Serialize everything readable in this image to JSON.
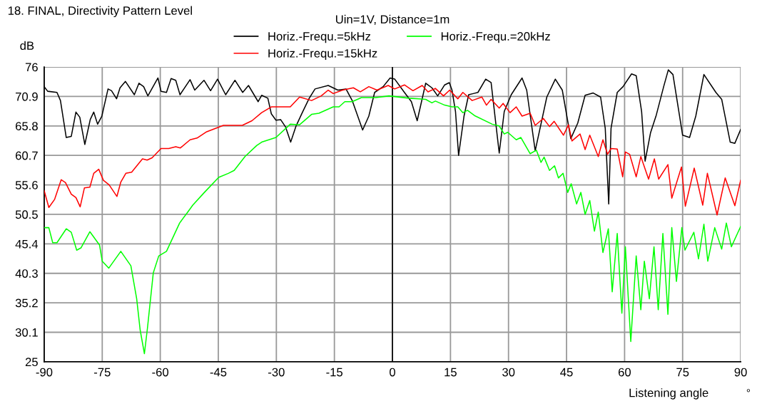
{
  "chart_data": {
    "type": "line",
    "title": "18. FINAL, Directivity Pattern Level",
    "xlabel": "Listening angle",
    "ylabel": "dB",
    "legend_title": "Uin=1V, Distance=1m",
    "annotations": [
      "°"
    ],
    "xlim": [
      -90,
      90
    ],
    "xticks": [
      -90,
      -75,
      -60,
      -45,
      -30,
      -15,
      0,
      15,
      30,
      45,
      60,
      75,
      90
    ],
    "ylim": [
      25,
      76
    ],
    "yticks": [
      25,
      30.1,
      35.2,
      40.3,
      45.4,
      50.5,
      55.6,
      60.7,
      65.8,
      70.9,
      76
    ],
    "grid": true,
    "legend": "top",
    "marker": "none",
    "line_style": "solid",
    "ref_lines": [
      {
        "axis": "x",
        "value": 0,
        "color": "#000000"
      }
    ],
    "series": [
      {
        "name": "Horiz.-Frequ.=5kHz",
        "color": "#000000",
        "x": [
          -90,
          -89.1,
          -86.7,
          -85.8,
          -84.3,
          -83,
          -81.8,
          -80.8,
          -79.5,
          -78.1,
          -77.2,
          -76.2,
          -75.1,
          -73.5,
          -72.6,
          -71.3,
          -70.4,
          -69,
          -66.7,
          -65.5,
          -64.3,
          -63.2,
          -60.6,
          -59.8,
          -58.4,
          -57.2,
          -56,
          -54.9,
          -52.3,
          -51.1,
          -48.7,
          -47,
          -45.2,
          -43.1,
          -40.7,
          -38.7,
          -37.2,
          -34.7,
          -33.8,
          -32.2,
          -31.3,
          -30.1,
          -28.9,
          -27.6,
          -26.3,
          -24.9,
          -23.3,
          -21.5,
          -20,
          -16.6,
          -14.1,
          -12,
          -10.4,
          -7.7,
          -6.1,
          -4.6,
          -2.4,
          -0.6,
          0.6,
          3.1,
          4.9,
          6.4,
          8.6,
          10.2,
          11.7,
          13.5,
          14.7,
          15.4,
          16.3,
          17.1,
          18.5,
          19.7,
          20.9,
          22.1,
          24.1,
          25.5,
          27.6,
          28.9,
          30.7,
          33.5,
          34.7,
          36.9,
          39.9,
          42.1,
          43.9,
          46.1,
          47.9,
          49.8,
          51.9,
          53.8,
          55,
          55.9,
          56.5,
          58.1,
          59.6,
          61.8,
          63,
          64.4,
          65.3,
          66.7,
          68.2,
          70.1,
          71.3,
          72.5,
          75,
          76.8,
          78.4,
          80.5,
          83.6,
          85.1,
          87.3,
          88.5,
          90
        ],
        "values": [
          72.6,
          71.8,
          71.6,
          70.2,
          63.8,
          64,
          68.2,
          67.3,
          62.6,
          66.9,
          68.2,
          66.1,
          67.5,
          72.2,
          71.9,
          70.5,
          72.4,
          73.5,
          71.2,
          73.2,
          72.6,
          71,
          74.1,
          71.8,
          71.6,
          74,
          73.7,
          71.2,
          73.8,
          72,
          73.7,
          71.9,
          73.9,
          71.2,
          73.7,
          71.6,
          72.8,
          70,
          71.1,
          70.6,
          67.9,
          66.8,
          66.9,
          65.6,
          63,
          65.8,
          68.1,
          70.6,
          72.2,
          72.8,
          72,
          72.2,
          70.2,
          65.1,
          67.5,
          71.6,
          72.6,
          74.1,
          73.9,
          71.6,
          70,
          66.7,
          73.2,
          72.4,
          71,
          72.9,
          73.3,
          72,
          68.3,
          60.7,
          67.5,
          71.2,
          71.4,
          71.6,
          73.9,
          73.3,
          61.1,
          68.3,
          71.2,
          74.1,
          72,
          61.5,
          70.8,
          73.9,
          72,
          63.6,
          66.3,
          71.1,
          71.5,
          70.8,
          65.4,
          52.3,
          65.4,
          71.6,
          72.6,
          74.8,
          74.5,
          68.3,
          59.7,
          64.6,
          67.7,
          72.6,
          75.5,
          74.7,
          64.2,
          63.8,
          67.5,
          74.7,
          71.6,
          70.4,
          63,
          62.8,
          65.2
        ]
      },
      {
        "name": "Horiz.-Frequ.=15kHz",
        "color": "#ff0000",
        "x": [
          -90,
          -88.8,
          -87.3,
          -85.6,
          -84.5,
          -83,
          -81.8,
          -80.7,
          -79.6,
          -78.2,
          -77.2,
          -75.9,
          -74.7,
          -73.2,
          -71.2,
          -70.2,
          -68.9,
          -67.4,
          -64.6,
          -63.4,
          -62.1,
          -59.8,
          -57.8,
          -56,
          -54.8,
          -52.3,
          -50.5,
          -48,
          -45.6,
          -43.7,
          -38.8,
          -36.3,
          -33.8,
          -31.3,
          -26.4,
          -24,
          -20.9,
          -18.4,
          -16.6,
          -15.3,
          -12.9,
          -10.1,
          -8.3,
          -6.1,
          -4,
          -1.1,
          0.6,
          3.1,
          5.3,
          7.7,
          9.2,
          11.1,
          13.2,
          14.8,
          16.9,
          18.2,
          20.6,
          23.1,
          24.3,
          25.5,
          27.6,
          28.6,
          30.4,
          32,
          33.5,
          35.6,
          36.9,
          39,
          40.6,
          41.8,
          44.2,
          45.5,
          46.4,
          48.5,
          49.8,
          51,
          53.2,
          54.4,
          55.6,
          56.5,
          58.1,
          59.5,
          60.2,
          61.3,
          63,
          64.2,
          66.2,
          67.7,
          68.8,
          71.2,
          72.2,
          74.7,
          75.7,
          78,
          80.2,
          81.4,
          83.9,
          86,
          88.5,
          90
        ],
        "values": [
          54.6,
          51.7,
          53.1,
          56.5,
          56,
          54,
          53.4,
          51.8,
          55.1,
          55.2,
          57.6,
          58.3,
          56.4,
          55.6,
          53.6,
          56.1,
          57.6,
          57.8,
          60.1,
          59.9,
          60.3,
          61.9,
          61.9,
          62.2,
          62,
          63.4,
          63.7,
          64.8,
          65.4,
          65.9,
          65.9,
          66.7,
          68.1,
          69.1,
          69.1,
          70.8,
          70.2,
          71,
          72,
          71.4,
          72,
          72.4,
          71.7,
          72.6,
          72,
          72.8,
          72.2,
          72.9,
          71.9,
          72.8,
          71.7,
          72.3,
          71,
          72,
          70.5,
          71.6,
          70.2,
          70.8,
          69.4,
          70.4,
          68.9,
          69.7,
          68.1,
          69.1,
          67.5,
          68,
          65.9,
          67.1,
          65.7,
          66.6,
          64.2,
          66,
          63.2,
          64.4,
          61.7,
          64.2,
          60.5,
          63.4,
          60.9,
          61.9,
          61.8,
          57,
          61.3,
          60.9,
          57,
          60.5,
          56.6,
          60.1,
          56.6,
          59.1,
          53.3,
          58.7,
          51.9,
          58.5,
          52.1,
          57.6,
          50.4,
          56.8,
          52,
          56.4
        ]
      },
      {
        "name": "Horiz.-Frequ.=20kHz",
        "color": "#00ff00",
        "x": [
          -90,
          -88.8,
          -87.8,
          -86.7,
          -84.3,
          -83,
          -81.6,
          -80.5,
          -78.2,
          -75.7,
          -75,
          -73.3,
          -70.2,
          -67.6,
          -66.1,
          -65.2,
          -64.1,
          -63.3,
          -61.8,
          -60.4,
          -58.4,
          -55,
          -52.9,
          -51.6,
          -48.6,
          -44.9,
          -42.4,
          -40.9,
          -38.1,
          -35.1,
          -33.8,
          -30.1,
          -26.4,
          -24,
          -20.9,
          -19,
          -15.3,
          -13.8,
          -12.3,
          -10.4,
          -8,
          -4.3,
          -0.9,
          4.3,
          6.8,
          8.6,
          10.2,
          11.1,
          13.5,
          15.4,
          16.9,
          18.2,
          19.4,
          21.2,
          25.8,
          27.6,
          28.9,
          29.8,
          32,
          33.2,
          35.6,
          37.2,
          38.4,
          39.2,
          40.6,
          41.9,
          42.9,
          44.1,
          45.3,
          46.2,
          47.6,
          48.7,
          49.8,
          51,
          52.2,
          53.2,
          54.4,
          55.8,
          56.8,
          58.1,
          59.3,
          60.2,
          61.6,
          63,
          64.2,
          65.1,
          66.4,
          67.6,
          68.7,
          69.9,
          71.2,
          72.2,
          73.4,
          74.8,
          75.6,
          77.9,
          79.1,
          80.5,
          81.5,
          83.3,
          85.1,
          86.3,
          87.6,
          90
        ],
        "values": [
          48.2,
          48.2,
          45.6,
          45.6,
          48,
          47.4,
          44.3,
          44.7,
          47.5,
          45.2,
          42.4,
          41.2,
          44.1,
          41.6,
          35.9,
          30.5,
          26.4,
          30.9,
          40.4,
          43.3,
          44.1,
          49,
          50.9,
          52.1,
          54.3,
          56.9,
          57.6,
          58.1,
          60.5,
          62.4,
          63,
          63.8,
          66.1,
          66,
          67.8,
          68,
          69.1,
          69.1,
          70,
          70,
          70.7,
          70.7,
          71,
          70.6,
          70.5,
          70.4,
          69.8,
          70.1,
          69.4,
          69.1,
          69.1,
          68.1,
          68.5,
          67.6,
          66.1,
          65.8,
          64.4,
          64.7,
          63.4,
          63.8,
          61,
          61.6,
          59.5,
          60.4,
          58.1,
          58.9,
          56.8,
          57.6,
          54.3,
          55.8,
          52.3,
          54.3,
          50.5,
          52.9,
          47.6,
          50.9,
          43.9,
          48,
          37.1,
          47.2,
          33.4,
          44.9,
          28.5,
          43.3,
          34,
          42.4,
          35.9,
          44.9,
          34,
          47.2,
          33.2,
          48.2,
          38.9,
          48.2,
          44.3,
          47.4,
          42.8,
          48.8,
          42.4,
          48.2,
          44.5,
          49,
          44.9,
          48.4
        ]
      }
    ]
  }
}
